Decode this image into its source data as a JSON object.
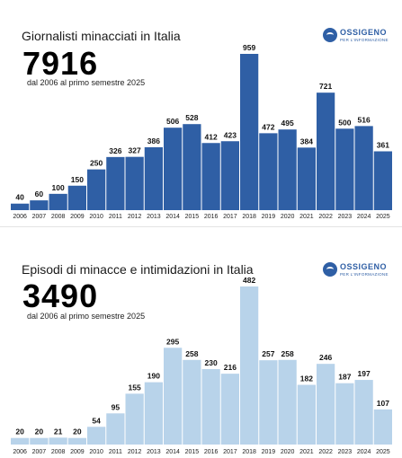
{
  "chart_data": [
    {
      "type": "bar",
      "title": "Giornalisti minacciati in Italia",
      "total": "7916",
      "subtitle": "dal 2006 al primo semestre 2025",
      "logo_name": "OSSIGENO",
      "logo_tagline": "PER L'INFORMAZIONE",
      "bar_color": "#2f5fa5",
      "peak_color": "#2f5fa5",
      "categories": [
        "2006",
        "2007",
        "2008",
        "2009",
        "2010",
        "2011",
        "2012",
        "2013",
        "2014",
        "2015",
        "2016",
        "2017",
        "2018",
        "2019",
        "2020",
        "2021",
        "2022",
        "2023",
        "2024",
        "2025"
      ],
      "values": [
        40,
        60,
        100,
        150,
        250,
        326,
        327,
        386,
        506,
        528,
        412,
        423,
        959,
        472,
        495,
        384,
        721,
        500,
        516,
        361
      ],
      "ylim": [
        0,
        959
      ]
    },
    {
      "type": "bar",
      "title": "Episodi di minacce e intimidazioni in Italia",
      "total": "3490",
      "subtitle": "dal 2006 al primo semestre 2025",
      "logo_name": "OSSIGENO",
      "logo_tagline": "PER L'INFORMAZIONE",
      "bar_color": "#b8d3ea",
      "categories": [
        "2006",
        "2007",
        "2008",
        "2009",
        "2010",
        "2011",
        "2012",
        "2013",
        "2014",
        "2015",
        "2016",
        "2017",
        "2018",
        "2019",
        "2020",
        "2021",
        "2022",
        "2023",
        "2024",
        "2025"
      ],
      "values": [
        20,
        20,
        21,
        20,
        54,
        95,
        155,
        190,
        295,
        258,
        230,
        216,
        482,
        257,
        258,
        182,
        246,
        187,
        197,
        107
      ],
      "ylim": [
        0,
        482
      ]
    }
  ]
}
